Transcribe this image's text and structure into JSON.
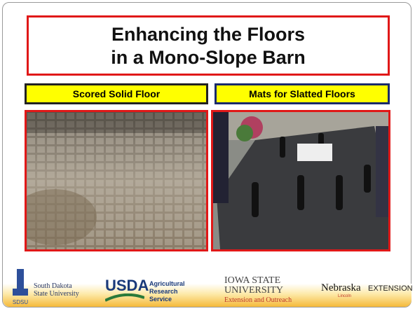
{
  "slide": {
    "title": [
      "Enhancing the Floors",
      "in a Mono-Slope Barn"
    ],
    "panels": [
      {
        "label": "Scored Solid Floor"
      },
      {
        "label": "Mats for Slatted Floors"
      }
    ],
    "footer": {
      "sdsu": {
        "lines": [
          "South Dakota",
          "State University"
        ],
        "mark": "SDSU"
      },
      "usda": {
        "mark": "USDA",
        "lines": [
          "Agricultural",
          "Research",
          "Service"
        ]
      },
      "iowa": {
        "lines": [
          "IOWA STATE",
          "UNIVERSITY"
        ],
        "sub": "Extension and Outreach"
      },
      "nebraska": {
        "mark": "Nebraska",
        "sub": "Lincoln",
        "ext": "EXTENSION"
      }
    }
  }
}
